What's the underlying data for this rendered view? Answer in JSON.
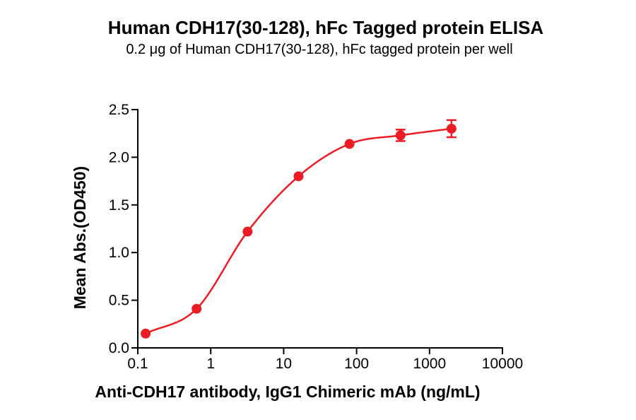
{
  "title": "Human CDH17(30-128), hFc Tagged protein ELISA",
  "subtitle": "0.2 μg of Human CDH17(30-128), hFc tagged protein per well",
  "chart_data": {
    "type": "scatter",
    "title": "Human CDH17(30-128), hFc Tagged protein ELISA",
    "subtitle": "0.2 μg of Human CDH17(30-128), hFc tagged protein per well",
    "xlabel": "Anti-CDH17 antibody, IgG1 Chimeric mAb (ng/mL)",
    "ylabel": "Mean Abs.(OD450)",
    "x_scale": "log10",
    "xlim": [
      0.1,
      10000
    ],
    "ylim": [
      0.0,
      2.5
    ],
    "x_ticks": [
      0.1,
      1,
      10,
      100,
      1000,
      10000
    ],
    "x_tick_labels": [
      "0.1",
      "1",
      "10",
      "100",
      "1000",
      "10000"
    ],
    "y_ticks": [
      0.0,
      0.5,
      1.0,
      1.5,
      2.0,
      2.5
    ],
    "y_tick_labels": [
      "0.0",
      "0.5",
      "1.0",
      "1.5",
      "2.0",
      "2.5"
    ],
    "grid": false,
    "legend": "none",
    "curve": "sigmoidal-fit-through-points",
    "series": [
      {
        "color": "#EC1C24",
        "marker": "circle",
        "points": [
          {
            "x": 0.128,
            "y": 0.15,
            "yerr": 0
          },
          {
            "x": 0.64,
            "y": 0.41,
            "yerr": 0
          },
          {
            "x": 3.2,
            "y": 1.22,
            "yerr": 0
          },
          {
            "x": 16,
            "y": 1.8,
            "yerr": 0
          },
          {
            "x": 80,
            "y": 2.14,
            "yerr": 0
          },
          {
            "x": 400,
            "y": 2.23,
            "yerr": 0.06
          },
          {
            "x": 2000,
            "y": 2.3,
            "yerr": 0.09
          }
        ]
      }
    ]
  },
  "colors": {
    "accent": "#EC1C24",
    "axis": "#000000",
    "background": "#FFFFFF"
  }
}
